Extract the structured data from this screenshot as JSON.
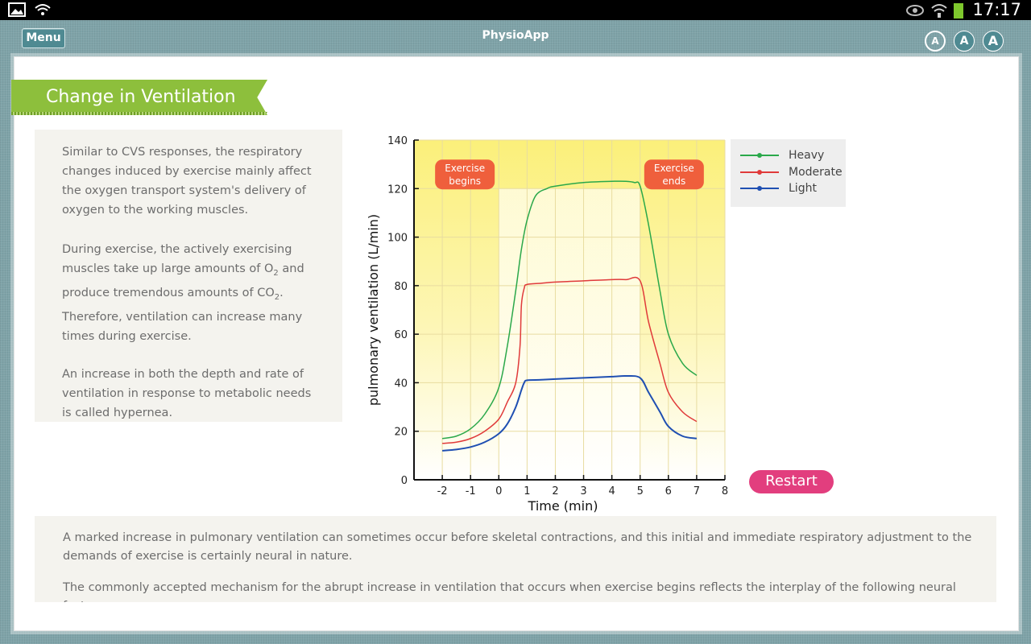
{
  "status_bar": {
    "time": "17:17"
  },
  "app": {
    "title": "PhysioApp",
    "menu_label": "Menu",
    "font_buttons": [
      "A",
      "A",
      "A"
    ]
  },
  "section": {
    "title": "Change in Ventilation"
  },
  "intro": {
    "p1": "Similar to CVS responses, the respiratory changes induced by exercise mainly affect the oxygen transport system's delivery of oxygen to the working muscles.",
    "p2_a": "During exercise, the actively exercising muscles take up large amounts of O",
    "p2_b": " and produce tremendous amounts of CO",
    "p2_c": ". Therefore, ventilation can increase many times during exercise.",
    "subscript_2": "2",
    "p3": "An increase in both the depth and rate of ventilation in response to metabolic needs is called hypernea."
  },
  "chart_data": {
    "type": "line",
    "xlabel": "Time (min)",
    "ylabel": "pulmonary ventilation (L/min)",
    "xlim": [
      -3,
      8
    ],
    "ylim": [
      0,
      140
    ],
    "x_ticks": [
      -2,
      -1,
      0,
      1,
      2,
      3,
      4,
      5,
      6,
      7,
      8
    ],
    "y_ticks": [
      0,
      20,
      40,
      60,
      80,
      100,
      120,
      140
    ],
    "annotations": [
      "Exercise begins",
      "Exercise ends"
    ],
    "exercise_window": [
      0,
      5
    ],
    "legend_position": "right",
    "series": [
      {
        "name": "Heavy",
        "color": "#2aa84a",
        "x": [
          -2,
          -1.5,
          -1,
          -0.5,
          0,
          0.3,
          0.6,
          0.8,
          1,
          1.3,
          1.7,
          2,
          3,
          4,
          4.5,
          4.8,
          5,
          5.3,
          5.7,
          6,
          6.5,
          7
        ],
        "y": [
          17,
          18,
          21,
          27,
          38,
          55,
          78,
          95,
          107,
          117,
          120,
          121,
          122.5,
          123,
          123,
          122.5,
          121,
          105,
          78,
          60,
          48,
          43
        ]
      },
      {
        "name": "Moderate",
        "color": "#e03a3a",
        "x": [
          -2,
          -1.5,
          -1,
          -0.5,
          0,
          0.3,
          0.6,
          0.75,
          0.8,
          0.9,
          1,
          1.5,
          2,
          3,
          4,
          4.5,
          5,
          5.3,
          5.7,
          6,
          6.5,
          7
        ],
        "y": [
          15,
          15.5,
          17,
          20,
          25,
          32,
          40,
          55,
          72,
          79,
          80.5,
          81,
          81.5,
          82,
          82.5,
          82.5,
          82,
          65,
          48,
          36,
          28,
          24
        ]
      },
      {
        "name": "Light",
        "color": "#1f4fb2",
        "x": [
          -2,
          -1.5,
          -1,
          -0.5,
          0,
          0.3,
          0.6,
          0.8,
          0.9,
          1,
          1.5,
          2,
          3,
          4,
          4.5,
          5,
          5.3,
          5.7,
          6,
          6.5,
          7
        ],
        "y": [
          12,
          12.5,
          13.5,
          15.5,
          19,
          23,
          30,
          37,
          40,
          41,
          41.2,
          41.5,
          42,
          42.5,
          42.8,
          42,
          36,
          28,
          22,
          18,
          17
        ]
      }
    ]
  },
  "restart_label": "Restart",
  "bottom": {
    "p1": "A marked increase in pulmonary ventilation can sometimes occur before skeletal contractions, and this initial and immediate respiratory adjustment to the demands of exercise is certainly neural in nature.",
    "p2": "The commonly accepted mechanism for the abrupt increase in ventilation that occurs when exercise begins reflects the interplay of the following neural factors:"
  }
}
